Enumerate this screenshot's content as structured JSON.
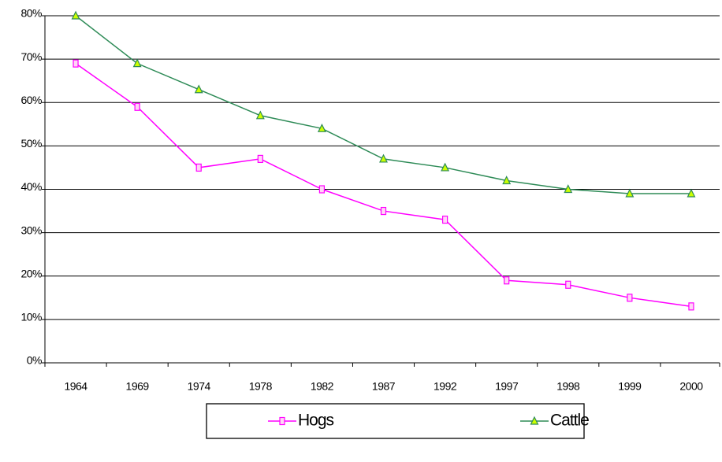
{
  "chart_data": {
    "type": "line",
    "categories": [
      "1964",
      "1969",
      "1974",
      "1978",
      "1982",
      "1987",
      "1992",
      "1997",
      "1998",
      "1999",
      "2000"
    ],
    "series": [
      {
        "name": "Hogs",
        "color": "#ff00ff",
        "marker": "square",
        "values": [
          69,
          59,
          45,
          47,
          40,
          35,
          33,
          19,
          18,
          15,
          13
        ]
      },
      {
        "name": "Cattle",
        "color": "#2e8b57",
        "marker": "triangle",
        "values": [
          80,
          69,
          63,
          57,
          54,
          47,
          45,
          42,
          40,
          39,
          39
        ]
      }
    ],
    "ylim": [
      0,
      80
    ],
    "yticks": [
      {
        "value": 0,
        "label": "0%"
      },
      {
        "value": 10,
        "label": "10%"
      },
      {
        "value": 20,
        "label": "20%"
      },
      {
        "value": 30,
        "label": "30%"
      },
      {
        "value": 40,
        "label": "40%"
      },
      {
        "value": 50,
        "label": "50%"
      },
      {
        "value": 60,
        "label": "60%"
      },
      {
        "value": 70,
        "label": "70%"
      },
      {
        "value": 80,
        "label": "80%"
      }
    ],
    "grid": true,
    "legend": "bottom"
  }
}
